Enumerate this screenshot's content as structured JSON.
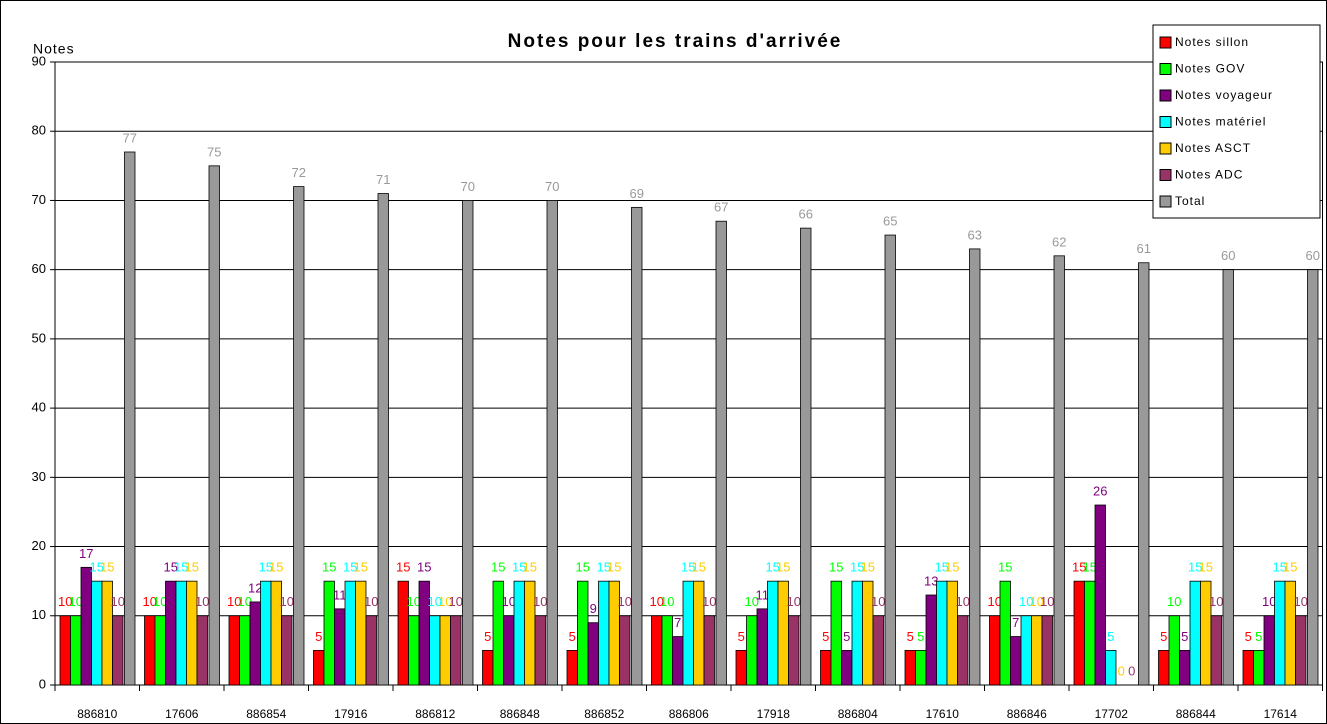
{
  "chart_data": {
    "type": "bar",
    "title": "Notes pour les trains d'arrivée",
    "y_label": "Notes",
    "categories": [
      "886810",
      "17606",
      "886854",
      "17916",
      "886812",
      "886848",
      "886852",
      "886806",
      "17918",
      "886804",
      "17610",
      "886846",
      "17702",
      "886844",
      "17614"
    ],
    "series": [
      {
        "name": "Notes sillon",
        "color": "#ff0000",
        "values": [
          10,
          10,
          10,
          5,
          15,
          5,
          5,
          10,
          5,
          5,
          5,
          10,
          15,
          5,
          5
        ]
      },
      {
        "name": "Notes GOV",
        "color": "#00ff00",
        "values": [
          10,
          10,
          10,
          15,
          10,
          15,
          15,
          10,
          10,
          15,
          5,
          15,
          15,
          10,
          5
        ]
      },
      {
        "name": "Notes voyageur",
        "color": "#800080",
        "values": [
          17,
          15,
          12,
          11,
          15,
          10,
          9,
          7,
          11,
          5,
          13,
          7,
          26,
          5,
          10
        ]
      },
      {
        "name": "Notes matériel",
        "color": "#00ffff",
        "values": [
          15,
          15,
          15,
          15,
          10,
          15,
          15,
          15,
          15,
          15,
          15,
          10,
          5,
          15,
          15
        ]
      },
      {
        "name": "Notes ASCT",
        "color": "#ffcc00",
        "values": [
          15,
          15,
          15,
          15,
          10,
          15,
          15,
          15,
          15,
          15,
          15,
          10,
          0,
          15,
          15
        ]
      },
      {
        "name": "Notes ADC",
        "color": "#993366",
        "values": [
          10,
          10,
          10,
          10,
          10,
          10,
          10,
          10,
          10,
          10,
          10,
          10,
          0,
          10,
          10
        ]
      },
      {
        "name": "Total",
        "color": "#999999",
        "values": [
          77,
          75,
          72,
          71,
          70,
          70,
          69,
          67,
          66,
          65,
          63,
          62,
          61,
          60,
          60
        ]
      }
    ],
    "ylim": [
      0,
      90
    ],
    "yticks": [
      0,
      10,
      20,
      30,
      40,
      50,
      60,
      70,
      80,
      90
    ],
    "grid": true,
    "legend": "upper right",
    "data_labels": true
  }
}
